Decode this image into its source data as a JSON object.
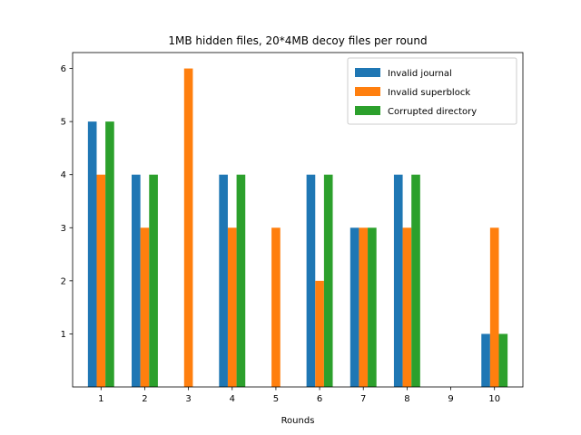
{
  "chart_data": {
    "type": "bar",
    "title": "1MB hidden files, 20*4MB decoy files per round",
    "xlabel": "Rounds",
    "ylabel": "",
    "categories": [
      "1",
      "2",
      "3",
      "4",
      "5",
      "6",
      "7",
      "8",
      "9",
      "10"
    ],
    "series": [
      {
        "name": "Invalid journal",
        "color": "#1f77b4",
        "values": [
          5,
          4,
          0,
          4,
          0,
          4,
          3,
          4,
          0,
          1
        ]
      },
      {
        "name": "Invalid superblock",
        "color": "#ff7f0e",
        "values": [
          4,
          3,
          6,
          3,
          3,
          2,
          3,
          3,
          0,
          3
        ]
      },
      {
        "name": "Corrupted directory",
        "color": "#2ca02c",
        "values": [
          5,
          4,
          0,
          4,
          0,
          4,
          3,
          4,
          0,
          1
        ]
      }
    ],
    "yticks": [
      1,
      2,
      3,
      4,
      5,
      6
    ],
    "ylim": [
      0,
      6.3
    ],
    "grid": false,
    "legend_position": "top-right"
  }
}
